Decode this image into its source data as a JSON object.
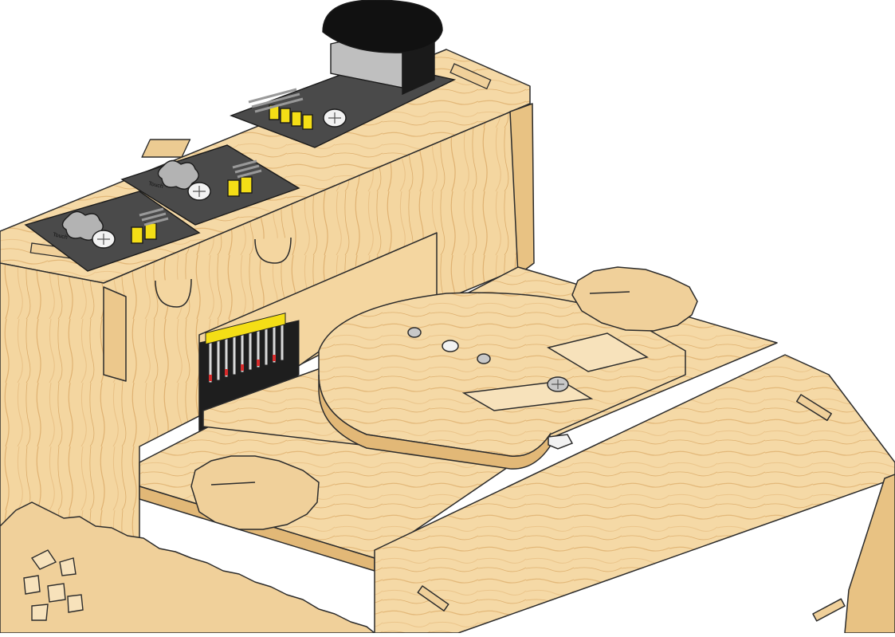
{
  "diagram": {
    "modules": [
      {
        "label": "Touch"
      },
      {
        "label": "Touch"
      }
    ]
  },
  "colors": {
    "background": "#ffffff",
    "wood_light": "#f7dfb3",
    "wood_mid": "#efcc93",
    "wood_dark": "#e2b877",
    "grain": "#d8a968",
    "outline": "#2b2b2b",
    "panel_dark": "#4a4a4a",
    "panel_black": "#1e1e1e",
    "knob_black": "#111111",
    "jumper_yellow": "#f4de16",
    "pin_silver": "#d9d9d9",
    "wire_red": "#d62b2b",
    "screw_white": "#f2f2f2",
    "shaft_grey": "#bfbfbf"
  }
}
